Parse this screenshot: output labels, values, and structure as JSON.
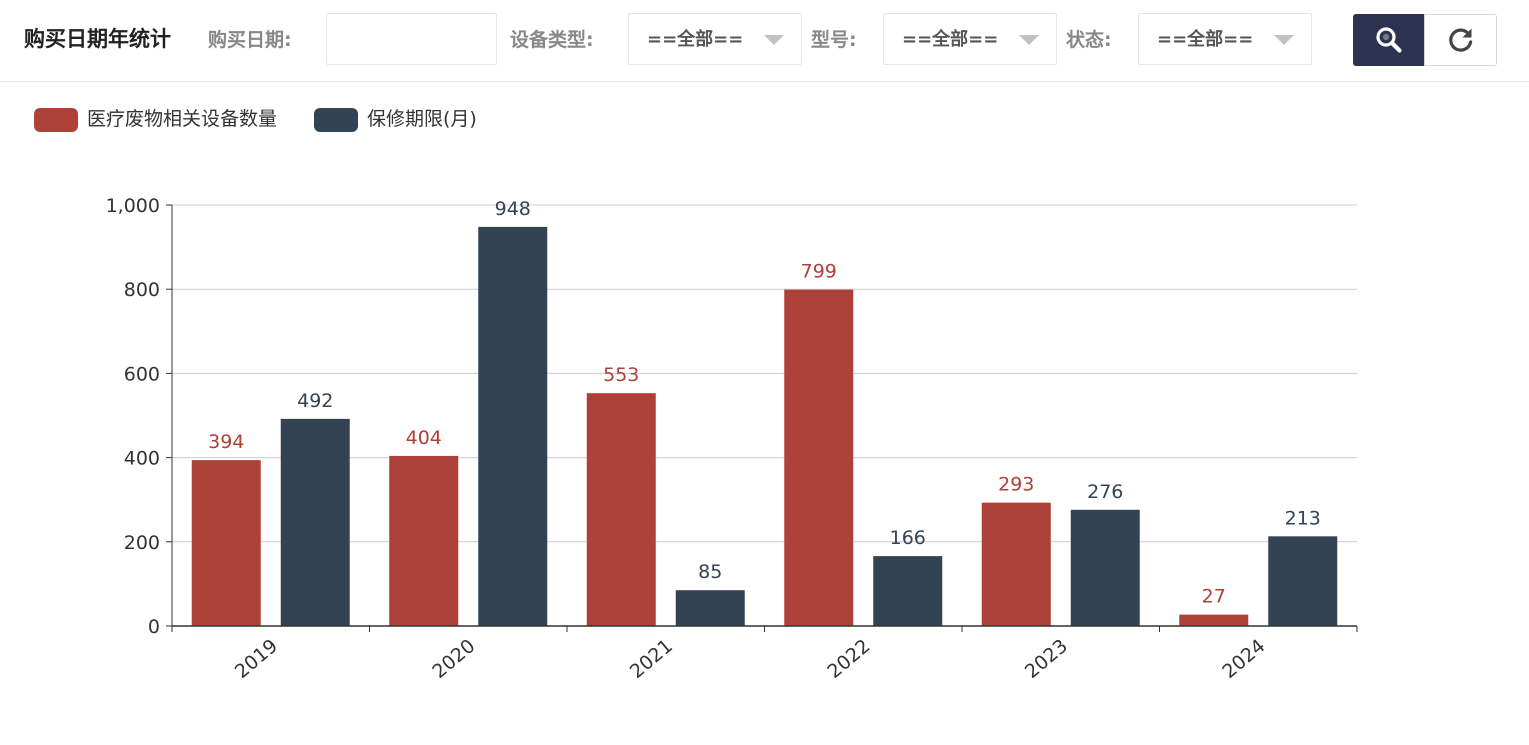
{
  "header": {
    "title": "购买日期年统计",
    "purchase_date_label": "购买日期:",
    "purchase_date_value": "",
    "device_type_label": "设备类型:",
    "device_type_value": "==全部==",
    "model_label": "型号:",
    "model_value": "==全部==",
    "status_label": "状态:",
    "status_value": "==全部==",
    "search_icon": "search-icon",
    "reset_icon": "refresh-icon"
  },
  "colors": {
    "series1": "#ad4038",
    "series2": "#344353",
    "search_button_bg": "#2d3251",
    "axis": "#333333",
    "grid": "#cccccc"
  },
  "chart_data": {
    "type": "bar",
    "categories": [
      "2019",
      "2020",
      "2021",
      "2022",
      "2023",
      "2024"
    ],
    "series": [
      {
        "name": "医疗废物相关设备数量",
        "color": "#ad4038",
        "values": [
          394,
          404,
          553,
          799,
          293,
          27
        ]
      },
      {
        "name": "保修期限(月)",
        "color": "#344353",
        "values": [
          492,
          948,
          85,
          166,
          276,
          213
        ]
      }
    ],
    "y_ticks": [
      "0",
      "200",
      "400",
      "600",
      "800",
      "1,000"
    ],
    "ylim": [
      0,
      1000
    ],
    "grid": true,
    "legend_position": "top-left",
    "data_labels": true,
    "x_tick_rotation": -40
  }
}
